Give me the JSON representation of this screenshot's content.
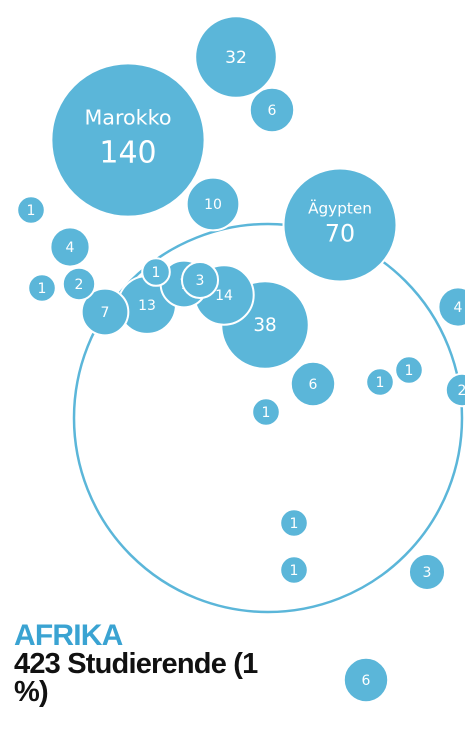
{
  "chart_data": {
    "type": "bubble",
    "title": "AFRIKA",
    "subtitle": "423 Studierende (1 %)",
    "color": "#5bb6d9",
    "labels": [
      "Marokko",
      null,
      null,
      null,
      "Ägypten",
      null,
      null,
      null,
      null,
      null,
      null,
      null,
      null,
      null,
      null,
      null,
      null,
      null,
      null,
      null,
      null,
      null,
      null,
      null,
      null,
      null
    ],
    "values": [
      140,
      32,
      6,
      10,
      70,
      1,
      4,
      1,
      2,
      1,
      7,
      3,
      14,
      13,
      7,
      38,
      6,
      1,
      1,
      1,
      4,
      2,
      1,
      1,
      3,
      6
    ]
  }
}
